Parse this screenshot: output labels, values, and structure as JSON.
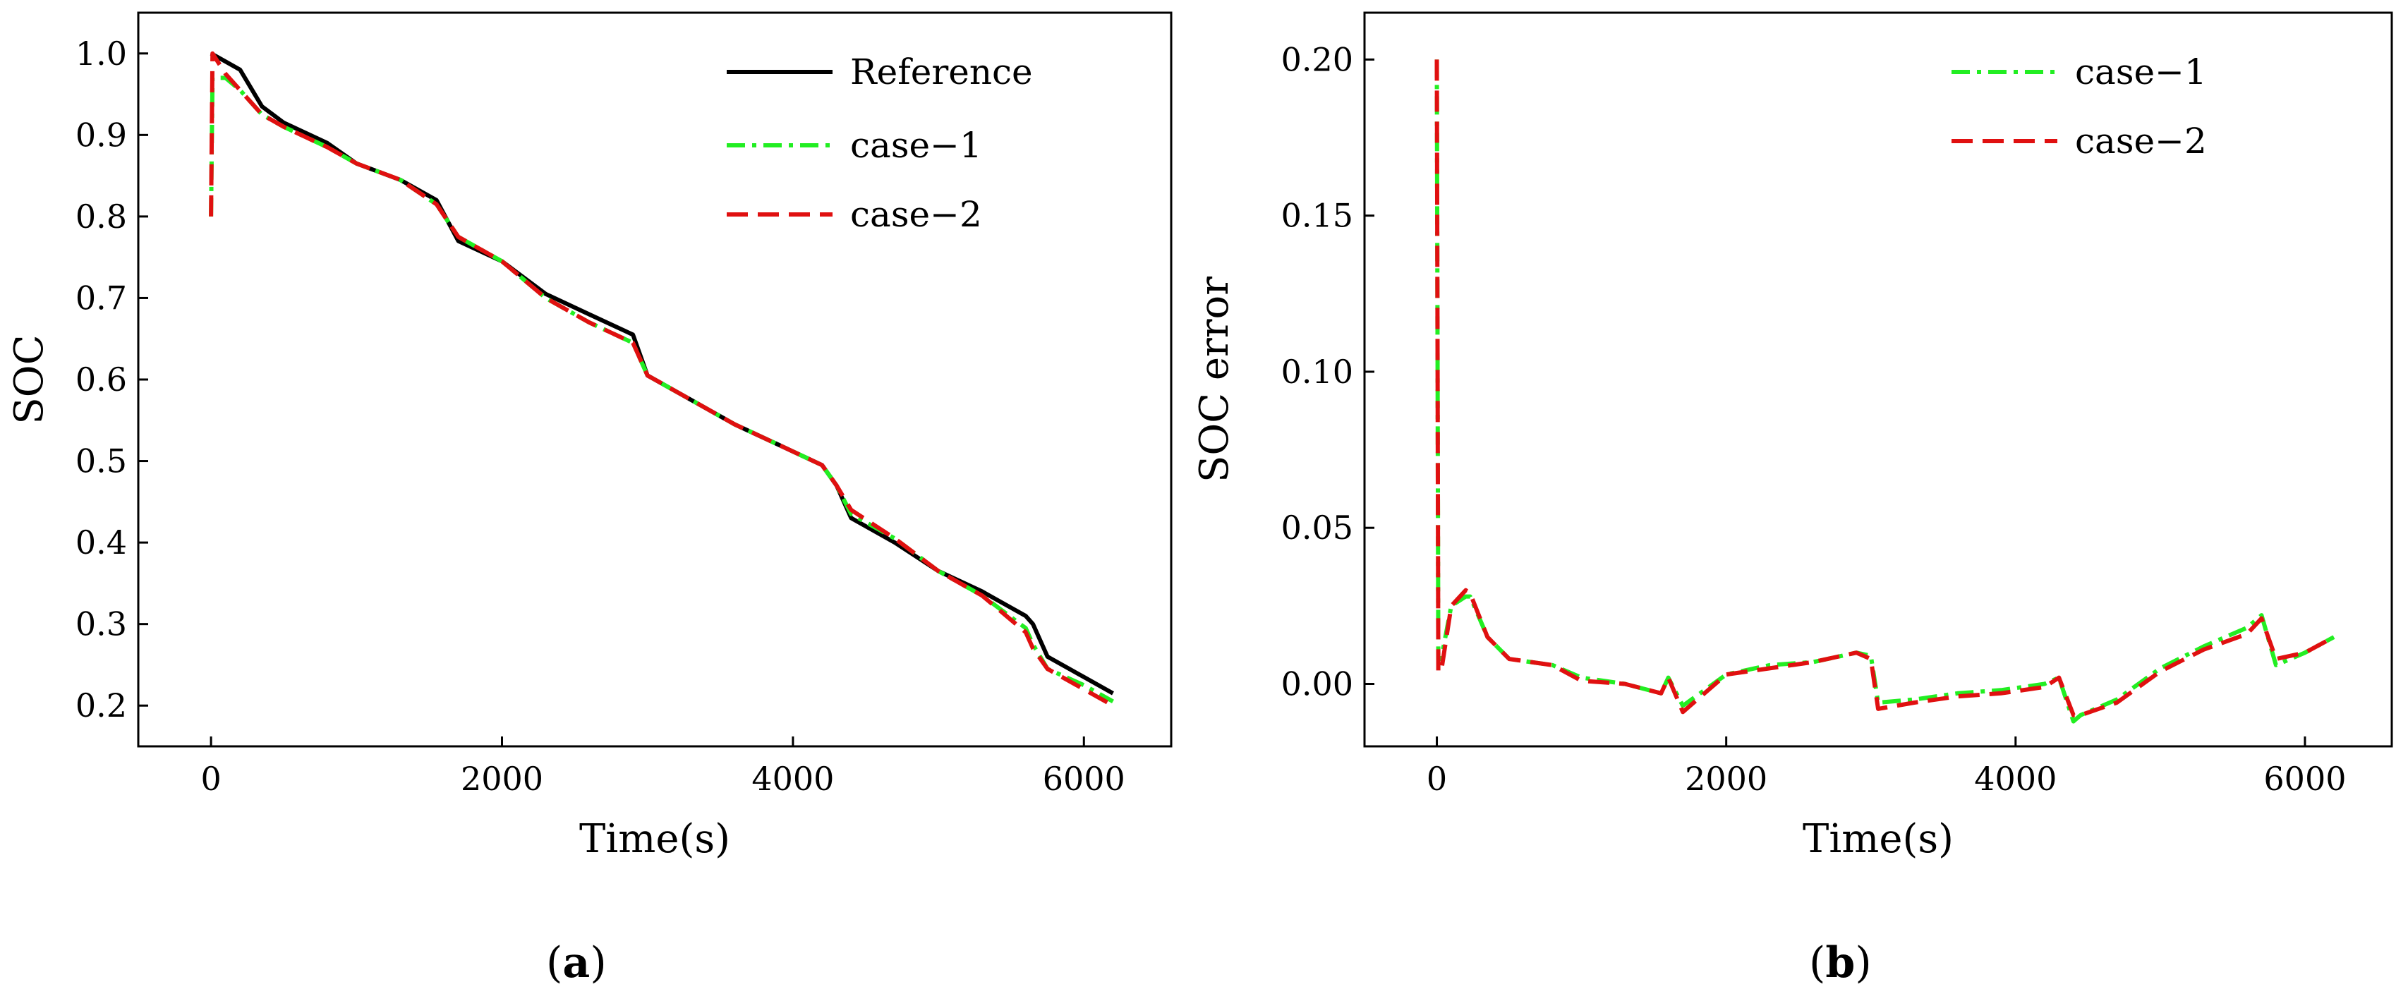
{
  "colors": {
    "reference": "#000000",
    "case1": "#22ee22",
    "case2": "#e01010",
    "axis": "#000000",
    "background": "#ffffff"
  },
  "chart_data": [
    {
      "type": "line",
      "panel_label": "a",
      "xlabel": "Time(s)",
      "ylabel": "SOC",
      "xlim": [
        -500,
        6600
      ],
      "ylim": [
        0.15,
        1.05
      ],
      "xticks": [
        0,
        2000,
        4000,
        6000
      ],
      "xtick_labels": [
        "0",
        "2000",
        "4000",
        "6000"
      ],
      "yticks": [
        0.2,
        0.3,
        0.4,
        0.5,
        0.6,
        0.7,
        0.8,
        0.9,
        1.0
      ],
      "ytick_labels": [
        "0.2",
        "0.3",
        "0.4",
        "0.5",
        "0.6",
        "0.7",
        "0.8",
        "0.9",
        "1.0"
      ],
      "legend_position": "top-right",
      "series": [
        {
          "name": "Reference",
          "style": "solid",
          "x": [
            0,
            100,
            200,
            350,
            500,
            800,
            1000,
            1300,
            1550,
            1700,
            2000,
            2300,
            2600,
            2900,
            3000,
            3300,
            3600,
            3900,
            4200,
            4300,
            4400,
            4700,
            5000,
            5300,
            5600,
            5650,
            5750,
            6000,
            6200
          ],
          "y": [
            1.0,
            0.99,
            0.98,
            0.935,
            0.915,
            0.89,
            0.865,
            0.845,
            0.82,
            0.77,
            0.745,
            0.705,
            0.68,
            0.655,
            0.605,
            0.575,
            0.545,
            0.52,
            0.495,
            0.47,
            0.43,
            0.4,
            0.365,
            0.34,
            0.31,
            0.3,
            0.26,
            0.235,
            0.215
          ]
        },
        {
          "name": "case−1",
          "style": "dashdot",
          "x": [
            0,
            10,
            100,
            200,
            350,
            500,
            800,
            1000,
            1300,
            1550,
            1700,
            2000,
            2300,
            2600,
            2900,
            3000,
            3300,
            3600,
            3900,
            4200,
            4300,
            4400,
            4700,
            5000,
            5300,
            5600,
            5650,
            5750,
            6000,
            6200
          ],
          "y": [
            0.8,
            0.97,
            0.97,
            0.955,
            0.925,
            0.91,
            0.885,
            0.865,
            0.845,
            0.815,
            0.775,
            0.745,
            0.7,
            0.67,
            0.645,
            0.605,
            0.575,
            0.545,
            0.52,
            0.495,
            0.47,
            0.435,
            0.405,
            0.365,
            0.335,
            0.295,
            0.275,
            0.245,
            0.225,
            0.205
          ]
        },
        {
          "name": "case−2",
          "style": "dashed",
          "x": [
            0,
            10,
            100,
            200,
            350,
            500,
            800,
            1000,
            1300,
            1550,
            1700,
            2000,
            2300,
            2600,
            2900,
            3000,
            3300,
            3600,
            3900,
            4200,
            4300,
            4400,
            4700,
            5000,
            5300,
            5600,
            5650,
            5750,
            6000,
            6200
          ],
          "y": [
            0.8,
            1.0,
            0.975,
            0.955,
            0.925,
            0.91,
            0.885,
            0.865,
            0.845,
            0.815,
            0.775,
            0.745,
            0.7,
            0.67,
            0.645,
            0.605,
            0.575,
            0.545,
            0.52,
            0.495,
            0.47,
            0.44,
            0.405,
            0.365,
            0.335,
            0.29,
            0.27,
            0.245,
            0.22,
            0.2
          ]
        }
      ]
    },
    {
      "type": "line",
      "panel_label": "b",
      "xlabel": "Time(s)",
      "ylabel": "SOC error",
      "xlim": [
        -500,
        6600
      ],
      "ylim": [
        -0.02,
        0.215
      ],
      "xticks": [
        0,
        2000,
        4000,
        6000
      ],
      "xtick_labels": [
        "0",
        "2000",
        "4000",
        "6000"
      ],
      "yticks": [
        0.0,
        0.05,
        0.1,
        0.15,
        0.2
      ],
      "ytick_labels": [
        "0.00",
        "0.05",
        "0.10",
        "0.15",
        "0.20"
      ],
      "legend_position": "top-right",
      "series": [
        {
          "name": "case−1",
          "style": "dashdot",
          "x": [
            0,
            5,
            10,
            30,
            100,
            200,
            230,
            350,
            500,
            800,
            1000,
            1300,
            1550,
            1600,
            1700,
            2000,
            2300,
            2600,
            2900,
            3000,
            3050,
            3300,
            3600,
            3900,
            4200,
            4300,
            4400,
            4450,
            4700,
            5000,
            5300,
            5600,
            5700,
            5800,
            6000,
            6200
          ],
          "y": [
            0.2,
            0.1,
            0.008,
            0.008,
            0.025,
            0.028,
            0.028,
            0.015,
            0.008,
            0.006,
            0.002,
            0.0,
            -0.003,
            0.002,
            -0.007,
            0.003,
            0.006,
            0.007,
            0.01,
            0.009,
            -0.006,
            -0.005,
            -0.003,
            -0.002,
            0.0,
            0.002,
            -0.012,
            -0.01,
            -0.005,
            0.005,
            0.012,
            0.018,
            0.022,
            0.006,
            0.01,
            0.015
          ]
        },
        {
          "name": "case−2",
          "style": "dashed",
          "x": [
            0,
            5,
            10,
            30,
            100,
            200,
            230,
            350,
            500,
            800,
            1000,
            1300,
            1550,
            1600,
            1700,
            2000,
            2300,
            2600,
            2900,
            3000,
            3050,
            3300,
            3600,
            3900,
            4200,
            4300,
            4400,
            4450,
            4700,
            5000,
            5300,
            5600,
            5700,
            5800,
            6000,
            6200
          ],
          "y": [
            0.2,
            0.1,
            0.004,
            0.004,
            0.025,
            0.03,
            0.029,
            0.015,
            0.008,
            0.006,
            0.001,
            0.0,
            -0.003,
            0.002,
            -0.009,
            0.003,
            0.005,
            0.007,
            0.01,
            0.008,
            -0.008,
            -0.006,
            -0.004,
            -0.003,
            -0.001,
            0.002,
            -0.01,
            -0.01,
            -0.006,
            0.004,
            0.011,
            0.016,
            0.021,
            0.008,
            0.01,
            0.015
          ]
        }
      ]
    }
  ]
}
